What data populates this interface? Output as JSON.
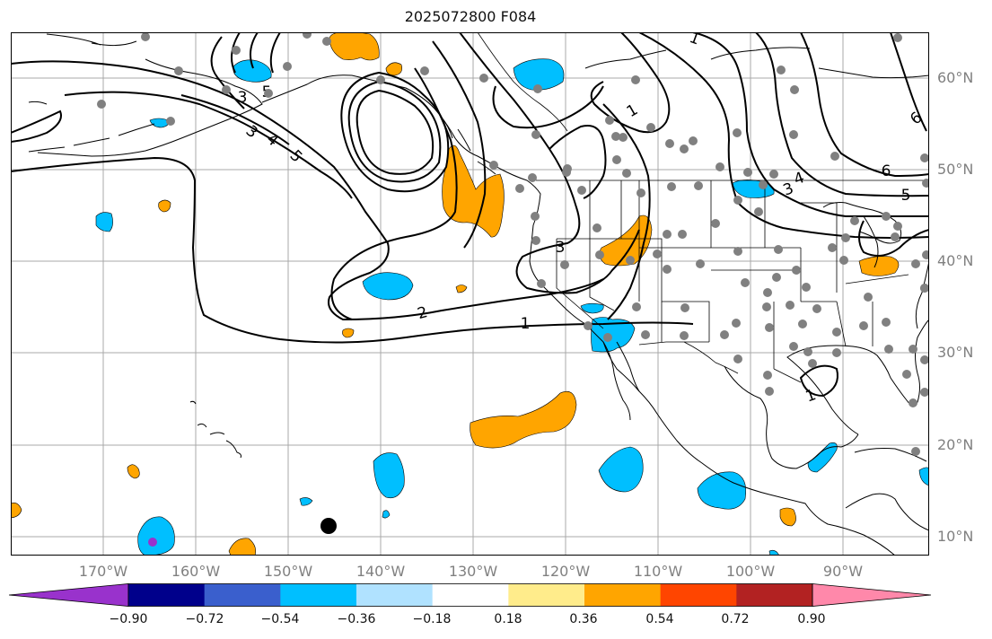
{
  "title": "2025072800 F084",
  "latitude_labels": [
    "60°N",
    "50°N",
    "40°N",
    "30°N",
    "20°N",
    "10°N"
  ],
  "longitude_labels": [
    "170°W",
    "160°W",
    "150°W",
    "140°W",
    "130°W",
    "120°W",
    "110°W",
    "100°W",
    "90°W"
  ],
  "contour_labels": [
    "1",
    "1",
    "1",
    "1",
    "2",
    "3",
    "3",
    "3",
    "3",
    "4",
    "4",
    "5",
    "5",
    "5",
    "6",
    "6"
  ],
  "colorbar": {
    "tick_labels": [
      "−0.90",
      "−0.72",
      "−0.54",
      "−0.36",
      "−0.18",
      "0.18",
      "0.36",
      "0.54",
      "0.72",
      "0.90"
    ],
    "colors": [
      "#9932cc",
      "#00008b",
      "#3a5fcd",
      "#00bfff",
      "#b0e2ff",
      "#ffffff",
      "#ffec8b",
      "#ffa500",
      "#ff4500",
      "#b22222",
      "#ff88aa"
    ]
  },
  "colors": {
    "positive_fill": "#ffa500",
    "negative_fill": "#00bfff",
    "station_dot": "#808080",
    "marker": "#000000",
    "grid": "#a9a9a9"
  }
}
